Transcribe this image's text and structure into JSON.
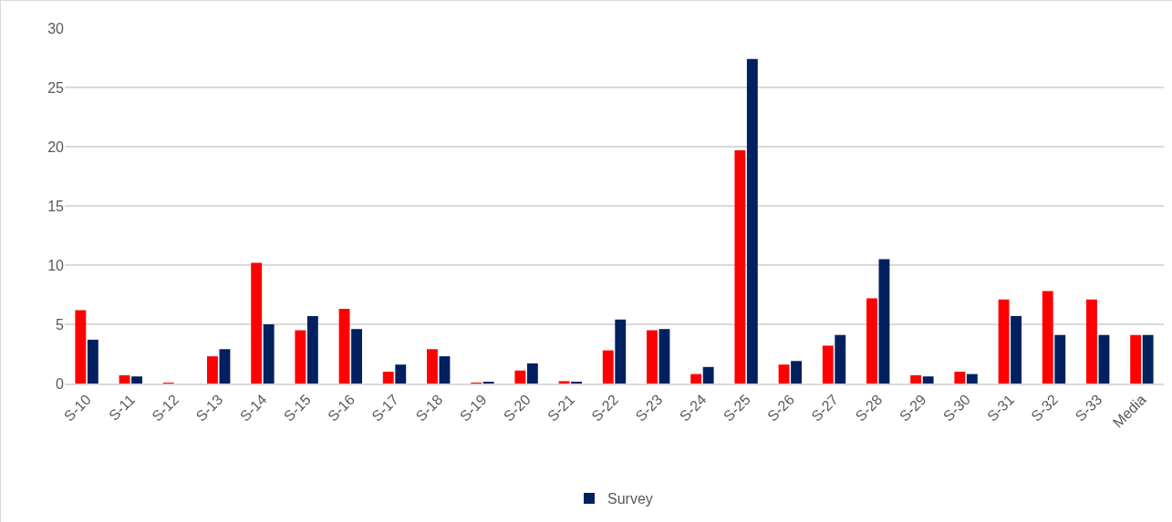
{
  "chart_data": {
    "type": "bar",
    "categories": [
      "S-10",
      "S-11",
      "S-12",
      "S-13",
      "S-14",
      "S-15",
      "S-16",
      "S-17",
      "S-18",
      "S-19",
      "S-20",
      "S-21",
      "S-22",
      "S-23",
      "S-24",
      "S-25",
      "S-26",
      "S-27",
      "S-28",
      "S-29",
      "S-30",
      "S-31",
      "S-32",
      "S-33",
      "Media"
    ],
    "series": [
      {
        "color": "#ff0000",
        "values": [
          6.2,
          0.7,
          0.05,
          2.3,
          10.2,
          4.5,
          6.3,
          1.0,
          2.9,
          0.05,
          1.1,
          0.2,
          2.8,
          4.5,
          0.8,
          19.7,
          1.6,
          3.2,
          7.2,
          0.7,
          1.0,
          7.1,
          7.8,
          7.1,
          4.1
        ]
      },
      {
        "name": "Survey",
        "color": "#002060",
        "values": [
          3.7,
          0.6,
          0,
          2.9,
          5.0,
          5.7,
          4.6,
          1.6,
          2.3,
          0.1,
          1.7,
          0.1,
          5.4,
          4.6,
          1.4,
          27.4,
          1.9,
          4.1,
          10.5,
          0.6,
          0.8,
          5.7,
          4.1,
          4.1,
          4.1
        ]
      }
    ],
    "ylim": [
      0,
      30
    ],
    "yticks": [
      0,
      5,
      10,
      15,
      20,
      25,
      30
    ],
    "grid": "y",
    "legend": "bottom"
  }
}
